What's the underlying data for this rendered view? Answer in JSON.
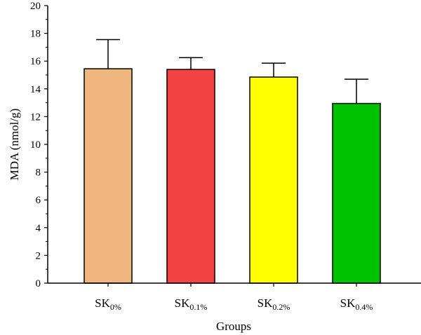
{
  "chart_data": {
    "type": "bar",
    "title": "",
    "xlabel": "Groups",
    "ylabel": "MDA (nmol/g)",
    "ylim": [
      0,
      20
    ],
    "yticks": [
      0,
      2,
      4,
      6,
      8,
      10,
      12,
      14,
      16,
      18,
      20
    ],
    "grid": false,
    "categories": [
      {
        "base": "SK",
        "sub": "0%"
      },
      {
        "base": "SK",
        "sub": "0.1%"
      },
      {
        "base": "SK",
        "sub": "0.2%"
      },
      {
        "base": "SK",
        "sub": "0.4%"
      }
    ],
    "values": [
      15.45,
      15.4,
      14.85,
      12.95
    ],
    "errors": [
      2.1,
      0.85,
      1.0,
      1.75
    ],
    "colors": [
      "#F0B67F",
      "#F54242",
      "#FFFF00",
      "#00C200"
    ]
  }
}
